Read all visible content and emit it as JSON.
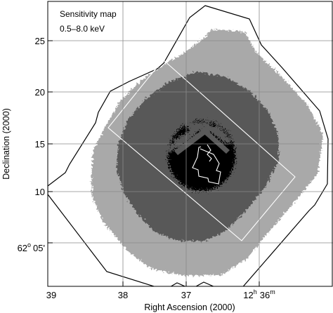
{
  "title": {
    "line1": "Sensitivity map",
    "line2": "0.5–8.0 keV"
  },
  "x_axis": {
    "label": "Right Ascension (2000)",
    "ticks": [
      "39",
      "38",
      "37",
      "36"
    ],
    "h_value": "12",
    "h_unit": "h",
    "m_unit": "m"
  },
  "y_axis": {
    "label": "Declination (2000)",
    "ticks": [
      "25",
      "20",
      "15",
      "10",
      "05'"
    ],
    "deg_value": "62",
    "deg_unit": "o"
  },
  "colors": {
    "light_region": "#a9a9a9",
    "dark_region": "#595959",
    "core": "#000000",
    "grid": "#8a8a8a",
    "outline": "#000000",
    "footprint": "#ffffff"
  }
}
